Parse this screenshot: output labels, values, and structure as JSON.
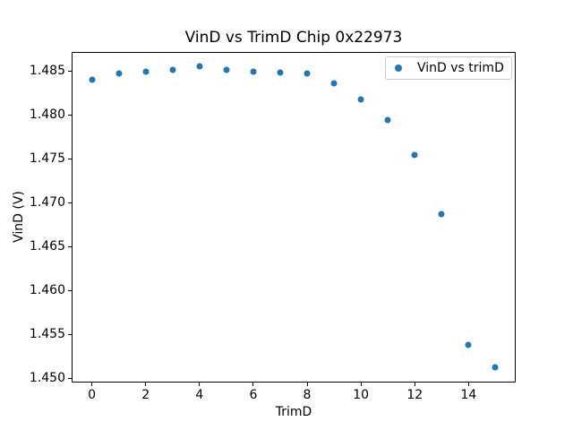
{
  "figure": {
    "title": "VinD vs TrimD Chip 0x22973",
    "background_color": "#ffffff",
    "text_color": "#000000",
    "spine_color": "#000000"
  },
  "legend": {
    "label": "VinD vs trimD",
    "marker_icon": "filled-circle",
    "marker_color": "#1f77b4",
    "border_color": "#cccccc",
    "position": "upper right"
  },
  "chart_data": {
    "type": "scatter",
    "title": "VinD vs TrimD Chip 0x22973",
    "xlabel": "TrimD",
    "ylabel": "VinD (V)",
    "series": [
      {
        "name": "VinD vs trimD",
        "marker": "circle",
        "color": "#1f77b4",
        "x": [
          0,
          1,
          2,
          3,
          4,
          5,
          6,
          7,
          8,
          9,
          10,
          11,
          12,
          13,
          14,
          15
        ],
        "y": [
          1.484,
          1.4847,
          1.4849,
          1.4851,
          1.4855,
          1.4851,
          1.4849,
          1.4848,
          1.4847,
          1.4836,
          1.4818,
          1.4794,
          1.4754,
          1.4687,
          1.4538,
          1.4512
        ]
      }
    ],
    "xlim": [
      -0.75,
      15.75
    ],
    "ylim": [
      1.44949,
      1.48722
    ],
    "xticks": [
      0,
      2,
      4,
      6,
      8,
      10,
      12,
      14
    ],
    "xtick_labels": [
      "0",
      "2",
      "4",
      "6",
      "8",
      "10",
      "12",
      "14"
    ],
    "yticks": [
      1.45,
      1.455,
      1.46,
      1.465,
      1.47,
      1.475,
      1.48,
      1.485
    ],
    "ytick_labels": [
      "1.450",
      "1.455",
      "1.460",
      "1.465",
      "1.470",
      "1.475",
      "1.480",
      "1.485"
    ],
    "grid": false,
    "legend_position": "upper right"
  }
}
